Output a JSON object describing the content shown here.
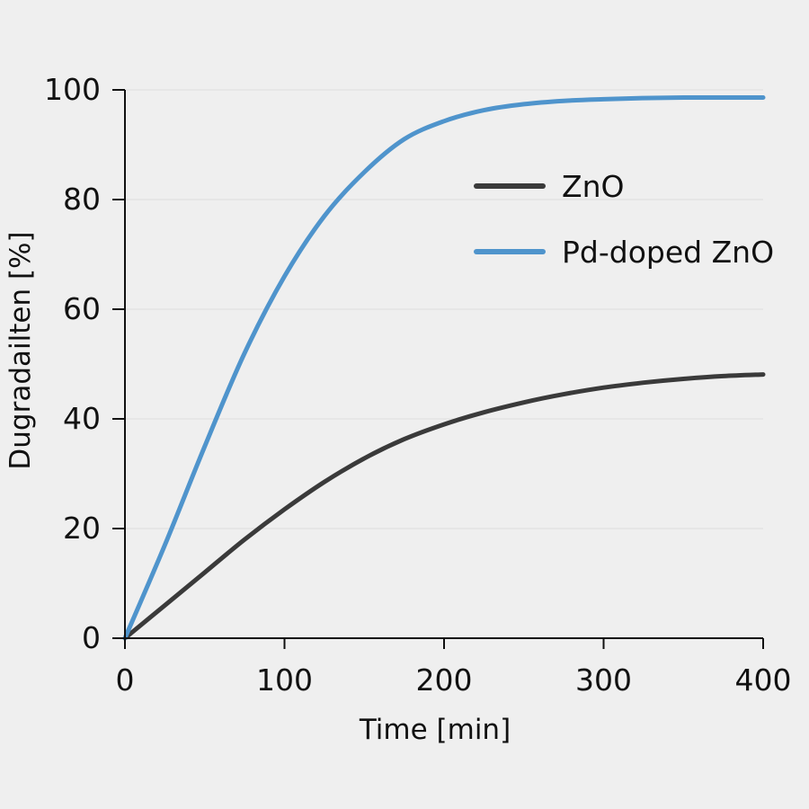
{
  "chart_data": {
    "type": "line",
    "title": "",
    "xlabel": "Time [min]",
    "ylabel": "Dugradailten [%]",
    "xlim": [
      0,
      400
    ],
    "ylim": [
      0,
      100
    ],
    "xticks": [
      0,
      100,
      200,
      300,
      400
    ],
    "yticks": [
      0,
      20,
      40,
      60,
      80,
      100
    ],
    "grid": "horizontal",
    "legend_position": "top-right",
    "series": [
      {
        "name": "ZnO",
        "color": "#3a3a3a",
        "x": [
          0,
          25,
          50,
          75,
          100,
          125,
          150,
          175,
          200,
          225,
          250,
          275,
          300,
          325,
          350,
          375,
          400
        ],
        "y": [
          0,
          6,
          12,
          18,
          23.5,
          28.5,
          32.8,
          36.3,
          39,
          41.2,
          43,
          44.5,
          45.7,
          46.6,
          47.3,
          47.8,
          48.1
        ]
      },
      {
        "name": "Pd-doped ZnO",
        "color": "#4f94cc",
        "x": [
          0,
          25,
          50,
          75,
          100,
          125,
          150,
          175,
          200,
          225,
          250,
          275,
          300,
          325,
          350,
          375,
          400
        ],
        "y": [
          0,
          17,
          35,
          52,
          66,
          77,
          85,
          91,
          94.3,
          96.3,
          97.4,
          98,
          98.3,
          98.5,
          98.6,
          98.6,
          98.6
        ]
      }
    ]
  }
}
